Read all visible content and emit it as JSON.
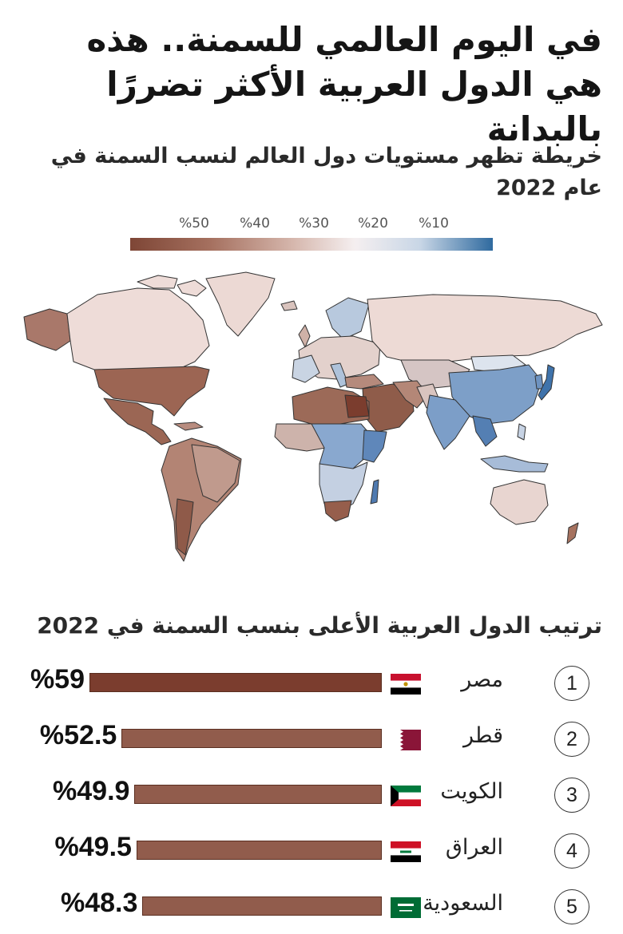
{
  "header": {
    "title": "في اليوم العالمي للسمنة.. هذه هي الدول العربية الأكثر تضررًا بالبدانة",
    "subtitle": "خريطة تظهر مستويات دول العالم لنسب السمنة في عام 2022"
  },
  "legend": {
    "ticks": [
      "%50",
      "%40",
      "%30",
      "%20",
      "%10"
    ],
    "colors": {
      "high": "#7e4636",
      "mid": "#f5eff0",
      "low": "#2f6a9f"
    }
  },
  "ranking": {
    "title": "ترتيب الدول العربية الأعلى بنسب السمنة في 2022"
  },
  "chart_data": {
    "type": "bar",
    "categories": [
      "مصر",
      "قطر",
      "الكويت",
      "العراق",
      "السعودية"
    ],
    "ranks": [
      "1",
      "2",
      "3",
      "4",
      "5"
    ],
    "values": [
      59,
      52.5,
      49.9,
      49.5,
      48.3
    ],
    "value_labels": [
      "%59",
      "%52.5",
      "%49.9",
      "%49.5",
      "%48.3"
    ],
    "flags": [
      "egypt-flag-icon",
      "qatar-flag-icon",
      "kuwait-flag-icon",
      "iraq-flag-icon",
      "saudi-flag-icon"
    ],
    "bar_colors": [
      "#7b3d2e",
      "#915c4c",
      "#915c4c",
      "#915c4c",
      "#915c4c"
    ]
  }
}
